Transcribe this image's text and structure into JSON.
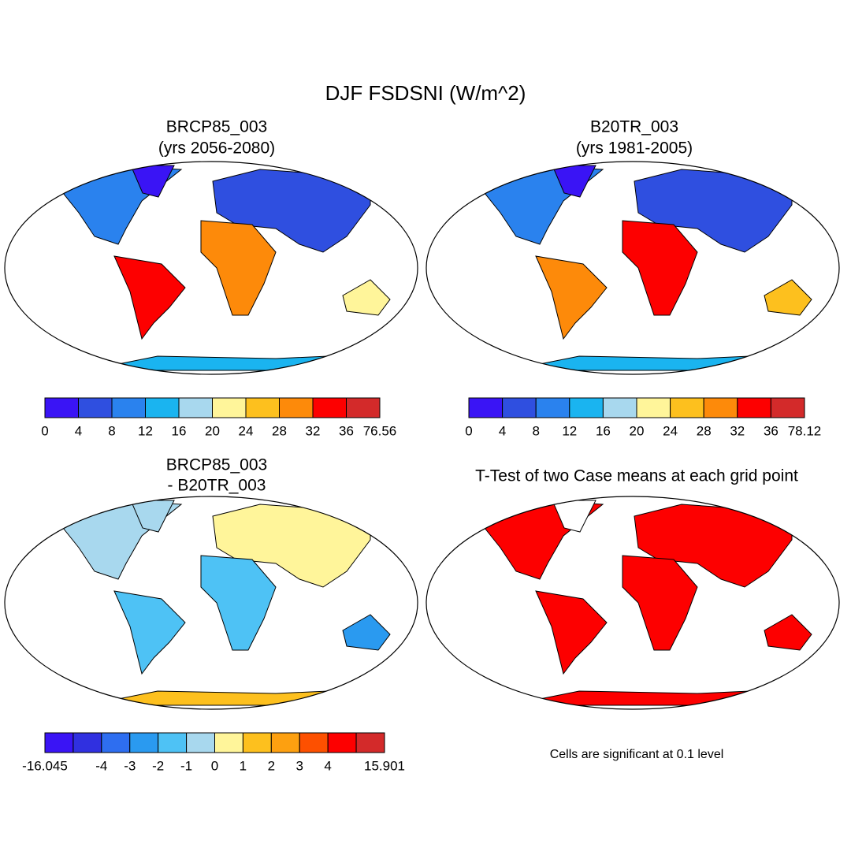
{
  "title": "DJF FSDSNI (W/m^2)",
  "panels": [
    {
      "title": "BRCP85_003",
      "subtitle": "(yrs 2056-2080)",
      "colorbar": {
        "colors": [
          "#3a14f5",
          "#2f4fe0",
          "#2a82ee",
          "#1ab4f0",
          "#a8d8ee",
          "#fff59a",
          "#fdc01e",
          "#fd8a0a",
          "#fd0000",
          "#d32a2a"
        ],
        "labels": [
          0,
          4,
          8,
          12,
          16,
          20,
          24,
          28,
          32,
          36,
          76.56
        ]
      }
    },
    {
      "title": "B20TR_003",
      "subtitle": "(yrs 1981-2005)",
      "colorbar": {
        "colors": [
          "#3a14f5",
          "#2f4fe0",
          "#2a82ee",
          "#1ab4f0",
          "#a8d8ee",
          "#fff59a",
          "#fdc01e",
          "#fd8a0a",
          "#fd0000",
          "#d32a2a"
        ],
        "labels": [
          0,
          4,
          8,
          12,
          16,
          20,
          24,
          28,
          32,
          36,
          78.12
        ]
      }
    },
    {
      "title": "BRCP85_003",
      "subtitle": "- B20TR_003",
      "colorbar": {
        "colors": [
          "#3a14f5",
          "#3030e0",
          "#2e6ef0",
          "#2a9af0",
          "#4ec2f5",
          "#a8d8ee",
          "#fff59a",
          "#fdc01e",
          "#fda010",
          "#fd5000",
          "#fd0000",
          "#d32a2a"
        ],
        "labels": [
          -16.045,
          null,
          -4,
          -3,
          -2,
          -1,
          0,
          1,
          2,
          3,
          4,
          null,
          15.901
        ]
      }
    },
    {
      "title": "T-Test of two Case means at each grid point",
      "note": "Cells are significant at 0.1 level"
    }
  ]
}
